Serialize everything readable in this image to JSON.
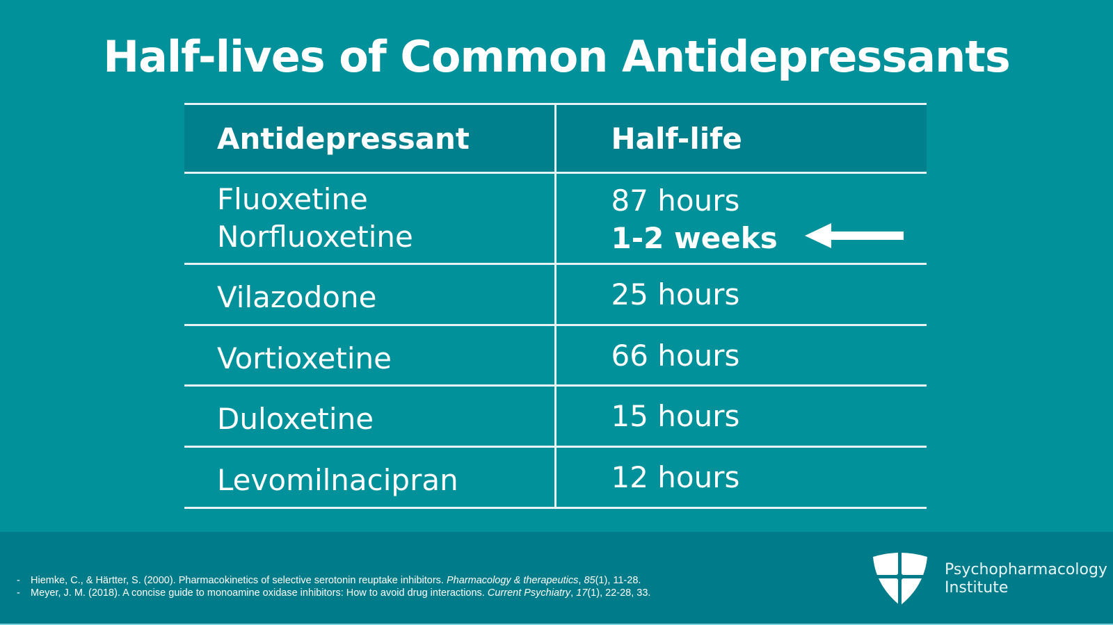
{
  "title": "Half-lives of Common Antidepressants",
  "table": {
    "headers": [
      "Antidepressant",
      "Half-life"
    ],
    "rows": [
      {
        "drug": [
          "Fluoxetine",
          "Norfluoxetine"
        ],
        "half_life": [
          "87 hours",
          "1-2 weeks"
        ],
        "highlight": "1-2 weeks",
        "icon": "arrow-left-icon"
      },
      {
        "drug": [
          "Vilazodone"
        ],
        "half_life": [
          "25 hours"
        ]
      },
      {
        "drug": [
          "Vortioxetine"
        ],
        "half_life": [
          "66 hours"
        ]
      },
      {
        "drug": [
          "Duloxetine"
        ],
        "half_life": [
          "15 hours"
        ]
      },
      {
        "drug": [
          "Levomilnacipran"
        ],
        "half_life": [
          "12 hours"
        ]
      }
    ]
  },
  "references": [
    {
      "dash": "-",
      "text": "Hiemke, C., & Härtter, S. (2000). Pharmacokinetics of selective serotonin reuptake inhibitors. ",
      "journal": "Pharmacology & therapeutics",
      "sep": ", ",
      "volume": "85",
      "rest": "(1), 11-28."
    },
    {
      "dash": "-",
      "text": "Meyer, J. M. (2018). A concise guide to monoamine oxidase inhibitors: How to avoid drug interactions. ",
      "journal": "Current Psychiatry",
      "sep": ", ",
      "volume": "17",
      "rest": "(1), 22-28, 33."
    }
  ],
  "brand": {
    "line1": "Psychopharmacology",
    "line2": "Institute",
    "icon": "shield-logo-icon"
  },
  "colors": {
    "background": "#00919b",
    "header": "#007f8c",
    "footer": "#007b8a",
    "text": "#ffffff"
  }
}
